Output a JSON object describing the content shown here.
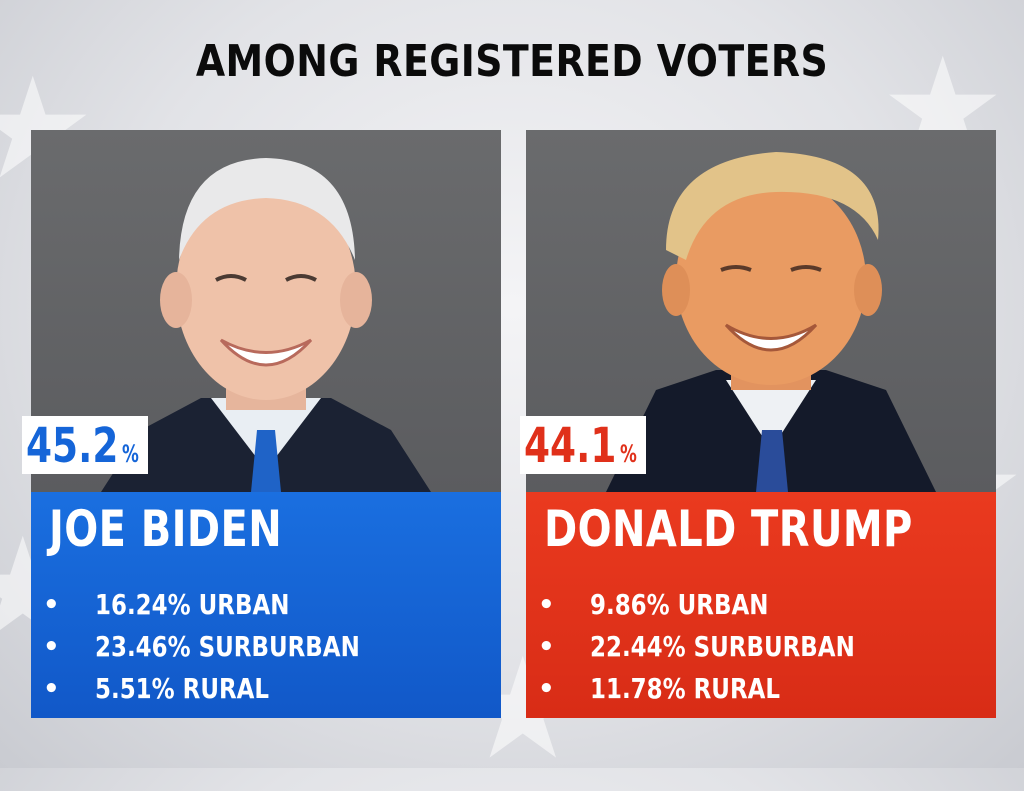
{
  "headline": "AMONG REGISTERED VOTERS",
  "candidates": [
    {
      "name": "JOE BIDEN",
      "percent": "45.2",
      "percent_sign": "%",
      "color": "#1565d8",
      "stats": [
        {
          "bullet": "•",
          "text": "16.24% URBAN"
        },
        {
          "bullet": "•",
          "text": "23.46% SURBURBAN"
        },
        {
          "bullet": "•",
          "text": "5.51% RURAL"
        }
      ],
      "photo_icon": "portrait-photo"
    },
    {
      "name": "DONALD TRUMP",
      "percent": "44.1",
      "percent_sign": "%",
      "color": "#e0301a",
      "stats": [
        {
          "bullet": "•",
          "text": "9.86% URBAN"
        },
        {
          "bullet": "•",
          "text": "22.44% SURBURBAN"
        },
        {
          "bullet": "•",
          "text": "11.78% RURAL"
        }
      ],
      "photo_icon": "portrait-photo"
    }
  ],
  "background_icon": "star-icon"
}
